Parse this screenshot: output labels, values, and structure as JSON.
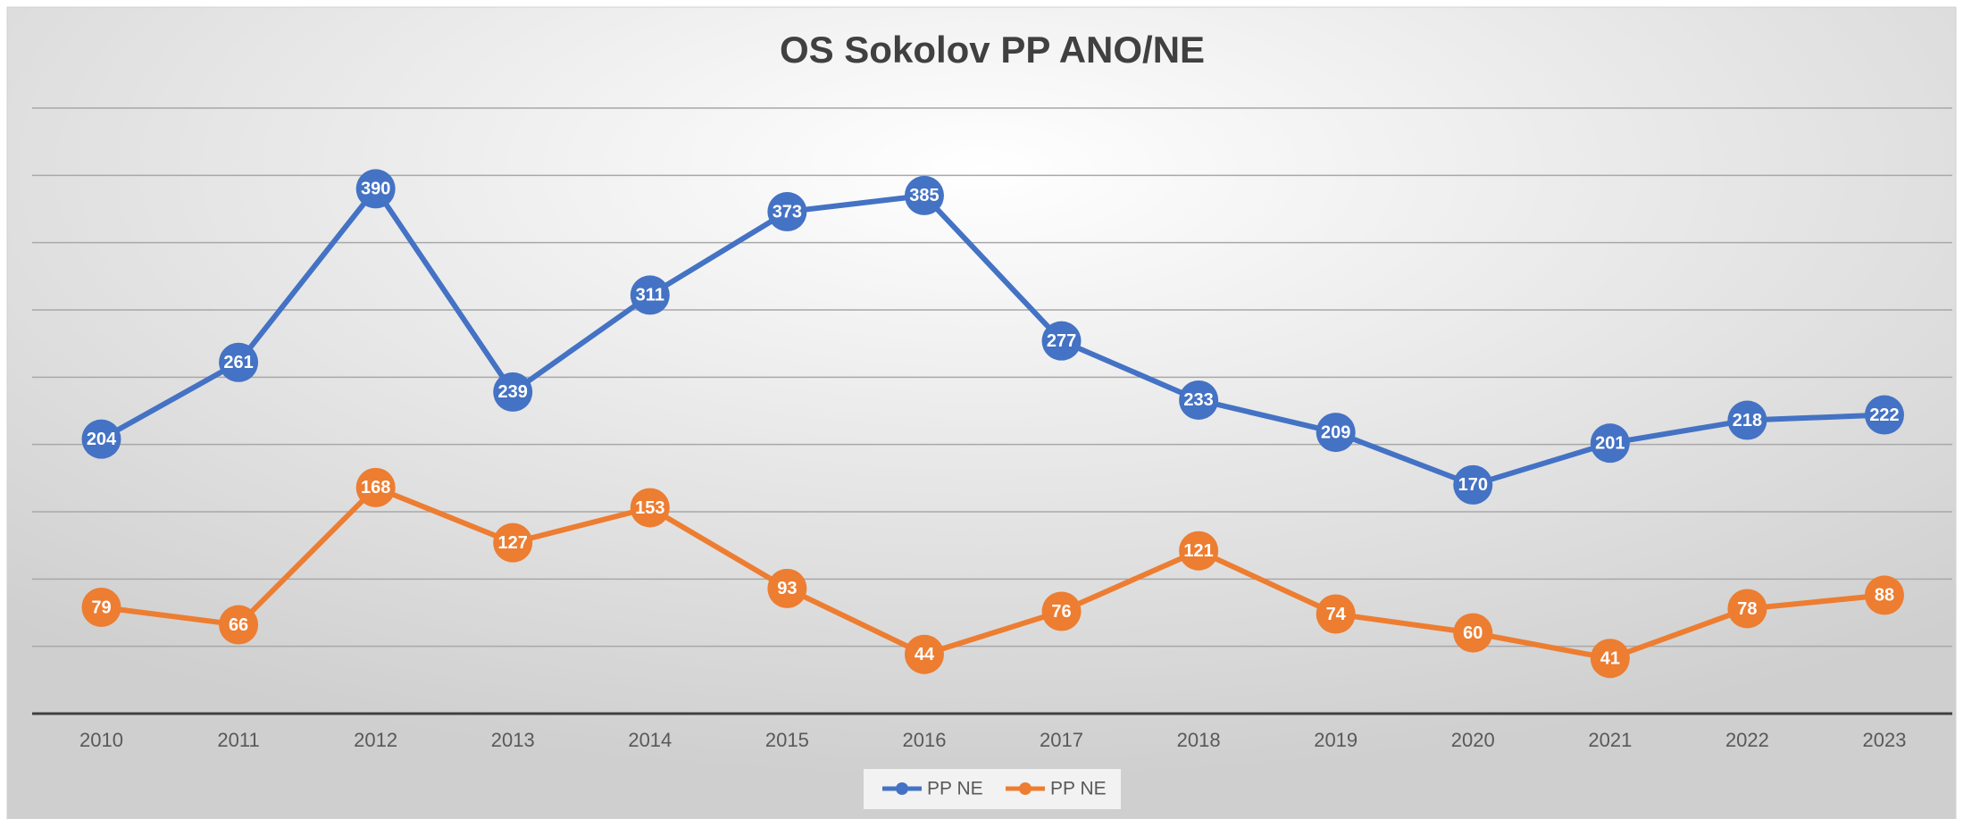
{
  "chart_data": {
    "type": "line",
    "title": "OS Sokolov PP ANO/NE",
    "categories": [
      "2010",
      "2011",
      "2012",
      "2013",
      "2014",
      "2015",
      "2016",
      "2017",
      "2018",
      "2019",
      "2020",
      "2021",
      "2022",
      "2023"
    ],
    "series": [
      {
        "name": "PP NE",
        "color": "#4472c4",
        "values": [
          204,
          261,
          390,
          239,
          311,
          373,
          385,
          277,
          233,
          209,
          170,
          201,
          218,
          222
        ]
      },
      {
        "name": "PP NE",
        "color": "#ed7d31",
        "values": [
          79,
          66,
          168,
          127,
          153,
          93,
          44,
          76,
          121,
          74,
          60,
          41,
          78,
          88
        ]
      }
    ],
    "ylim": [
      0,
      450
    ],
    "yticks": [
      0,
      50,
      100,
      150,
      200,
      250,
      300,
      350,
      400,
      450
    ],
    "grid": true,
    "legend": "bottom"
  }
}
